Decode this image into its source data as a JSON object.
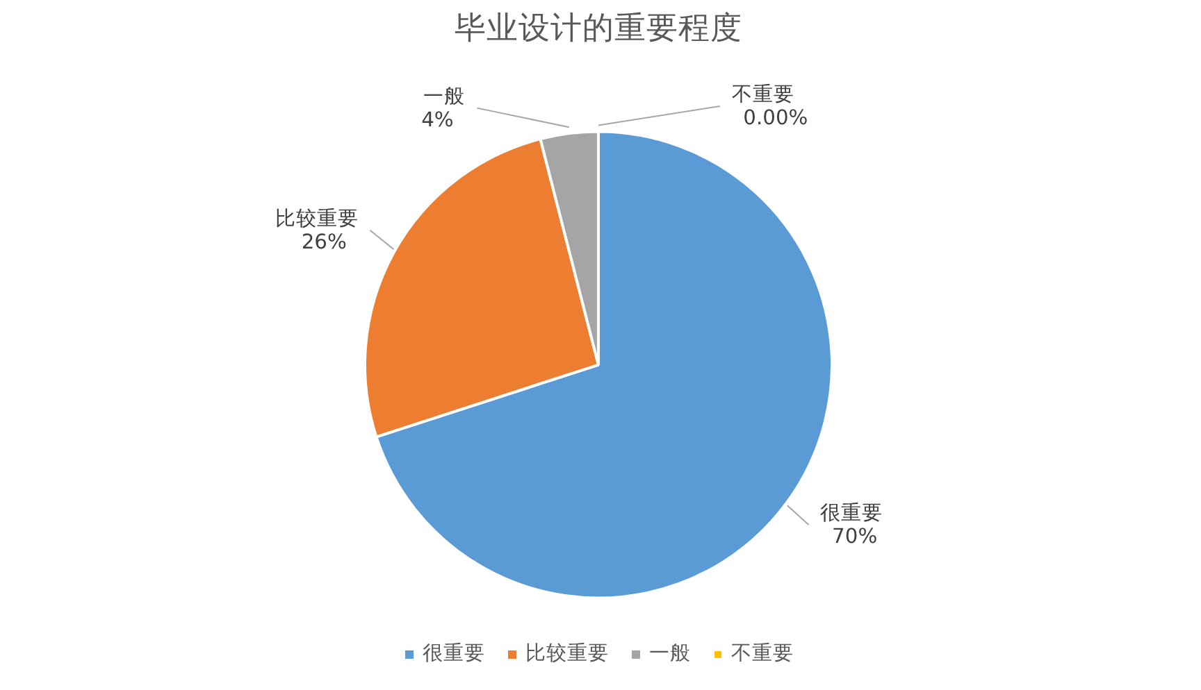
{
  "chart_data": {
    "type": "pie",
    "title": "毕业设计的重要程度",
    "categories": [
      "很重要",
      "比较重要",
      "一般",
      "不重要"
    ],
    "values": [
      70,
      26,
      4,
      0
    ],
    "value_labels": [
      "70%",
      "26%",
      "4%",
      "0.00%"
    ],
    "colors": [
      "#5b9bd5",
      "#ed7d31",
      "#a5a5a5",
      "#ffc000"
    ],
    "legend": "bottom"
  }
}
